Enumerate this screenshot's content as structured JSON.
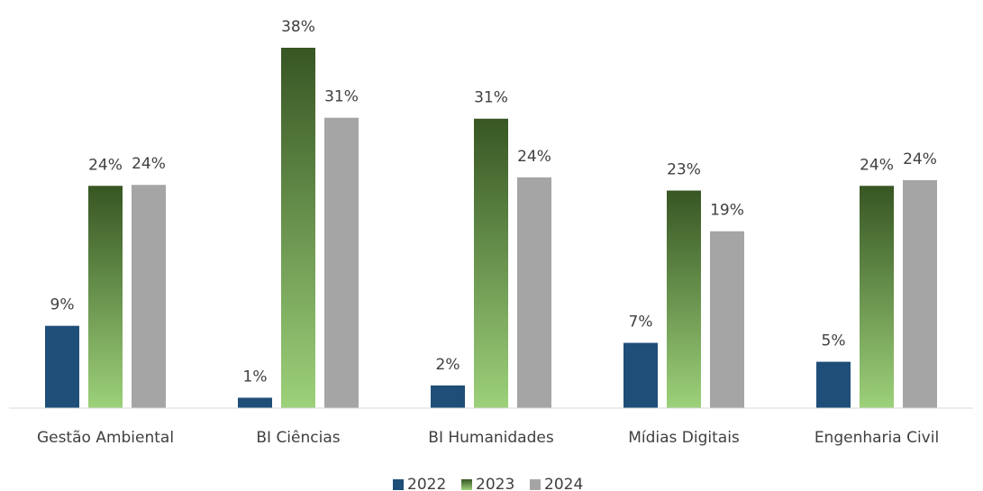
{
  "chart_data": {
    "type": "bar",
    "categories": [
      "Gestão Ambiental",
      "BI Ciências",
      "BI Humanidades",
      "Mídias Digitais",
      "Engenharia Civil"
    ],
    "series": [
      {
        "name": "2022",
        "color": "#1f4e79",
        "values": [
          8.7,
          1.1,
          2.4,
          6.9,
          4.9
        ],
        "value_labels": [
          "9%",
          "1%",
          "2%",
          "7%",
          "5%"
        ]
      },
      {
        "name": "2023",
        "color": "#548235",
        "gradient": [
          "#375623",
          "#9dd17a"
        ],
        "values": [
          23.5,
          38.1,
          30.6,
          23.0,
          23.5
        ],
        "value_labels": [
          "24%",
          "38%",
          "31%",
          "23%",
          "24%"
        ]
      },
      {
        "name": "2024",
        "color": "#a5a5a5",
        "values": [
          23.6,
          30.7,
          24.4,
          18.7,
          24.1
        ],
        "value_labels": [
          "24%",
          "31%",
          "24%",
          "19%",
          "24%"
        ]
      }
    ],
    "legend": "bottom"
  }
}
